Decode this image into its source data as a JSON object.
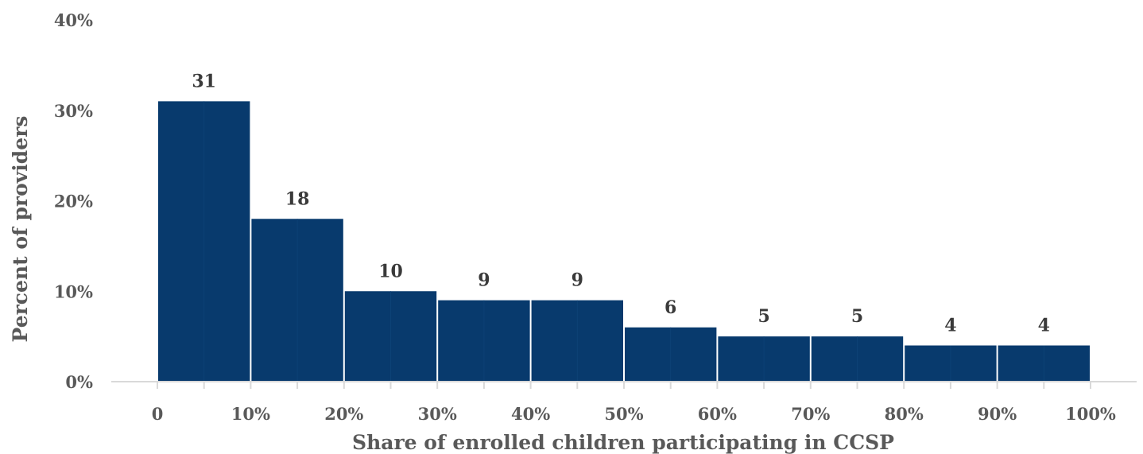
{
  "chart_data": {
    "type": "bar",
    "title": "",
    "xlabel": "Share of enrolled children participating in CCSP",
    "ylabel": "Percent of providers",
    "x_tick_labels": [
      "0",
      "10%",
      "20%",
      "30%",
      "40%",
      "50%",
      "60%",
      "70%",
      "80%",
      "90%",
      "100%"
    ],
    "y_tick_labels": [
      "0%",
      "10%",
      "20%",
      "30%",
      "40%"
    ],
    "y_ticks": [
      0,
      10,
      20,
      30,
      40
    ],
    "ylim": [
      0,
      40
    ],
    "bins": [
      [
        0,
        10
      ],
      [
        10,
        20
      ],
      [
        20,
        30
      ],
      [
        30,
        40
      ],
      [
        40,
        50
      ],
      [
        50,
        60
      ],
      [
        60,
        70
      ],
      [
        70,
        80
      ],
      [
        80,
        90
      ],
      [
        90,
        100
      ]
    ],
    "values": [
      31,
      18,
      10,
      9,
      9,
      6,
      5,
      5,
      4,
      4
    ],
    "data_labels": [
      "31",
      "18",
      "10",
      "9",
      "9",
      "6",
      "5",
      "5",
      "4",
      "4"
    ],
    "bar_color": "#083a6d",
    "grid": false,
    "legend": "none"
  }
}
